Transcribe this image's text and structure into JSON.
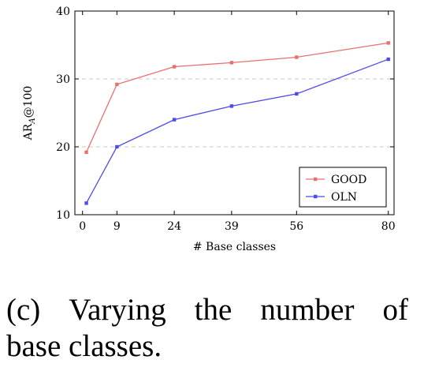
{
  "chart_data": {
    "type": "line",
    "x": [
      1,
      9,
      24,
      39,
      56,
      80
    ],
    "xticks": [
      0,
      9,
      24,
      39,
      56,
      80
    ],
    "yticks": [
      10,
      20,
      30,
      40
    ],
    "xlim": [
      -2,
      81.5
    ],
    "ylim": [
      10,
      40
    ],
    "xlabel": "# Base classes",
    "ylabel_main": "AR",
    "ylabel_sub": "A",
    "ylabel_tail": "@100",
    "grid": "horizontal-dashed",
    "legend_position": "bottom-right",
    "series": [
      {
        "name": "GOOD",
        "color": "#e8706f",
        "values": [
          19.2,
          29.2,
          31.8,
          32.4,
          33.2,
          35.3
        ]
      },
      {
        "name": "OLN",
        "color": "#4b4be8",
        "values": [
          11.7,
          20.0,
          24.0,
          26.0,
          27.8,
          32.9
        ]
      }
    ]
  },
  "caption": {
    "line1_words": [
      "(c)",
      "Varying",
      "the",
      "number",
      "of"
    ],
    "line2": "base classes."
  }
}
